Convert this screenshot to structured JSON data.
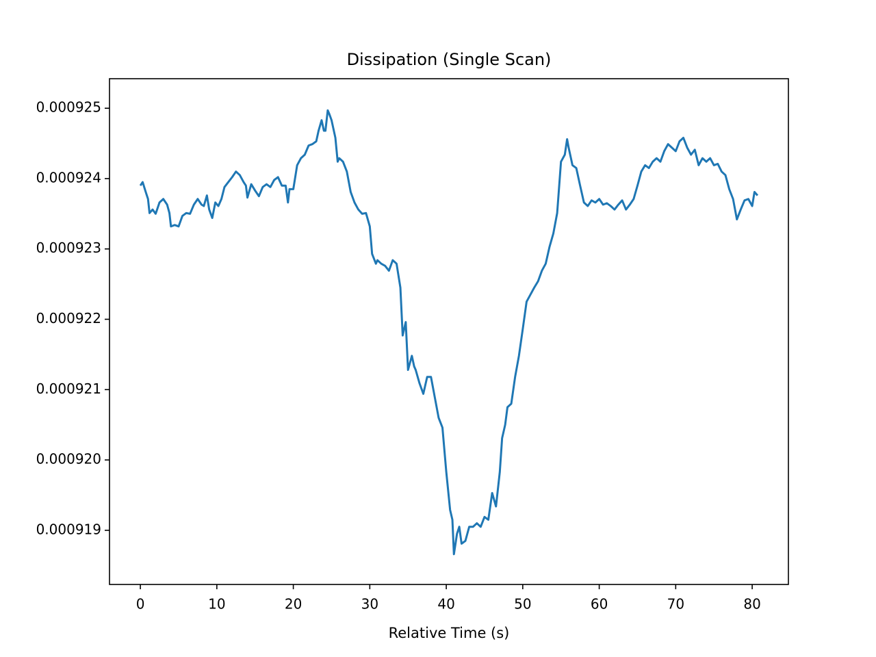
{
  "chart_data": {
    "type": "line",
    "title": "Dissipation (Single Scan)",
    "x_label": "Relative Time (s)",
    "x": [
      0,
      0.3,
      0.7,
      1,
      1.2,
      1.6,
      2,
      2.5,
      3,
      3.5,
      3.8,
      4,
      4.5,
      5,
      5.5,
      6,
      6.5,
      7,
      7.5,
      8,
      8.3,
      8.7,
      9,
      9.4,
      9.8,
      10.2,
      10.6,
      11,
      11.5,
      12,
      12.5,
      13,
      13.5,
      13.8,
      14,
      14.5,
      15,
      15.5,
      16,
      16.5,
      17,
      17.5,
      18,
      18.5,
      19,
      19.3,
      19.5,
      20,
      20.5,
      21,
      21.5,
      22,
      22.5,
      23,
      23.3,
      23.7,
      24,
      24.2,
      24.5,
      24.7,
      25,
      25.5,
      25.8,
      26,
      26.5,
      27,
      27.5,
      28,
      28.5,
      29,
      29.5,
      30,
      30.3,
      30.8,
      31,
      31.5,
      32,
      32.5,
      33,
      33.5,
      34,
      34.3,
      34.7,
      35,
      35.5,
      35.8,
      36,
      36.5,
      37,
      37.5,
      38,
      38.5,
      39,
      39.5,
      40,
      40.5,
      40.8,
      41,
      41.4,
      41.7,
      42,
      42.5,
      43,
      43.5,
      44,
      44.5,
      45,
      45.5,
      46,
      46.5,
      47,
      47.3,
      47.7,
      48,
      48.5,
      49,
      49.5,
      50,
      50.5,
      51,
      51.5,
      52,
      52.5,
      53,
      53.5,
      54,
      54.5,
      55,
      55.5,
      55.8,
      56,
      56.5,
      57,
      57.5,
      58,
      58.5,
      59,
      59.5,
      60,
      60.5,
      61,
      61.5,
      62,
      62.5,
      63,
      63.5,
      64,
      64.5,
      65,
      65.5,
      66,
      66.5,
      67,
      67.5,
      68,
      68.5,
      69,
      69.5,
      70,
      70.5,
      71,
      71.5,
      72,
      72.5,
      73,
      73.5,
      74,
      74.5,
      75,
      75.5,
      76,
      76.5,
      77,
      77.5,
      78,
      78.5,
      79,
      79.5,
      80,
      80.3,
      80.7
    ],
    "series": [
      {
        "color": "#1f77b4",
        "values": [
          0.0009239,
          0.00092395,
          0.00092381,
          0.00092371,
          0.00092351,
          0.00092356,
          0.0009235,
          0.00092366,
          0.00092371,
          0.00092363,
          0.00092351,
          0.00092332,
          0.00092334,
          0.00092332,
          0.00092347,
          0.00092351,
          0.0009235,
          0.00092363,
          0.00092371,
          0.00092363,
          0.00092361,
          0.00092376,
          0.00092356,
          0.00092344,
          0.00092366,
          0.00092361,
          0.00092371,
          0.00092388,
          0.00092395,
          0.00092402,
          0.0009241,
          0.00092405,
          0.00092395,
          0.0009239,
          0.00092373,
          0.00092392,
          0.00092383,
          0.00092375,
          0.00092388,
          0.00092392,
          0.00092388,
          0.00092398,
          0.00092402,
          0.0009239,
          0.0009239,
          0.00092366,
          0.00092385,
          0.00092385,
          0.00092419,
          0.00092429,
          0.00092434,
          0.00092447,
          0.00092449,
          0.00092453,
          0.00092468,
          0.00092483,
          0.00092468,
          0.00092468,
          0.00092497,
          0.00092492,
          0.00092483,
          0.00092458,
          0.00092424,
          0.00092429,
          0.00092424,
          0.0009241,
          0.00092381,
          0.00092366,
          0.00092356,
          0.0009235,
          0.00092351,
          0.00092332,
          0.00092293,
          0.00092279,
          0.00092284,
          0.00092279,
          0.00092276,
          0.00092269,
          0.00092284,
          0.00092279,
          0.00092245,
          0.00092177,
          0.00092196,
          0.00092128,
          0.00092148,
          0.00092133,
          0.00092128,
          0.00092109,
          0.00092094,
          0.00092118,
          0.00092118,
          0.00092089,
          0.0009206,
          0.00092046,
          0.00091983,
          0.00091929,
          0.00091915,
          0.00091866,
          0.00091895,
          0.00091905,
          0.00091881,
          0.00091885,
          0.00091905,
          0.00091905,
          0.0009191,
          0.00091905,
          0.00091919,
          0.00091915,
          0.00091953,
          0.00091934,
          0.00091983,
          0.00092031,
          0.0009205,
          0.00092075,
          0.0009208,
          0.00092118,
          0.00092148,
          0.00092186,
          0.00092225,
          0.00092235,
          0.00092245,
          0.00092254,
          0.00092269,
          0.00092279,
          0.00092303,
          0.00092322,
          0.00092351,
          0.00092424,
          0.00092434,
          0.00092456,
          0.00092444,
          0.00092419,
          0.00092415,
          0.0009239,
          0.00092366,
          0.00092361,
          0.00092369,
          0.00092366,
          0.00092371,
          0.00092363,
          0.00092365,
          0.00092361,
          0.00092356,
          0.00092363,
          0.00092369,
          0.00092356,
          0.00092363,
          0.00092371,
          0.0009239,
          0.0009241,
          0.00092419,
          0.00092415,
          0.00092424,
          0.00092429,
          0.00092424,
          0.00092439,
          0.00092449,
          0.00092444,
          0.00092439,
          0.00092453,
          0.00092458,
          0.00092444,
          0.00092434,
          0.00092441,
          0.00092419,
          0.00092429,
          0.00092424,
          0.00092429,
          0.00092419,
          0.00092421,
          0.0009241,
          0.00092405,
          0.00092385,
          0.00092371,
          0.00092342,
          0.00092356,
          0.00092369,
          0.00092371,
          0.00092361,
          0.00092381,
          0.00092376
        ]
      }
    ],
    "xlim": [
      -4.035,
      84.735
    ],
    "xticks": [
      0,
      10,
      20,
      30,
      40,
      50,
      60,
      70,
      80
    ],
    "ylim": [
      0.00091823,
      0.00092542
    ],
    "yticks": [
      0.000919,
      {
        "value": 0.00092,
        "label": "0.000920"
      },
      0.000921,
      0.000922,
      0.000923,
      0.000924,
      0.000925
    ],
    "grid": false
  }
}
